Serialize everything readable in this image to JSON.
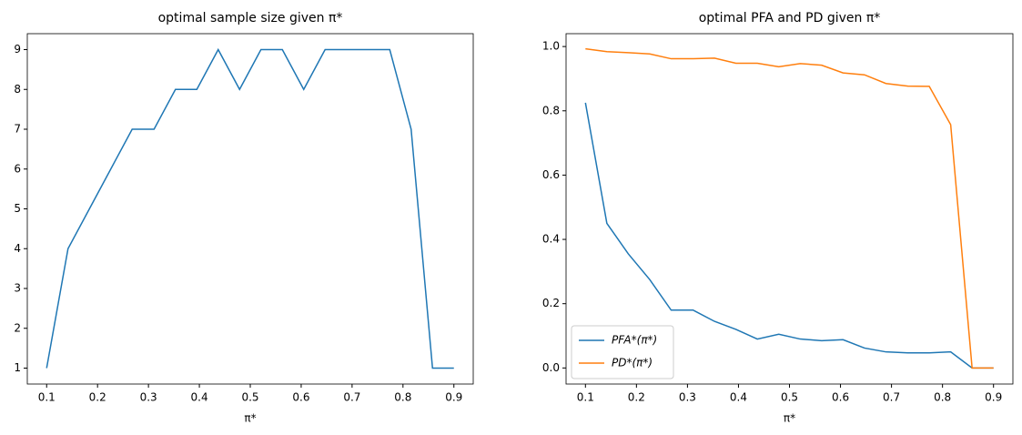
{
  "chart_data": [
    {
      "type": "line",
      "title": "optimal sample size given π*",
      "x_label": "π*",
      "x": [
        0.1,
        0.142,
        0.184,
        0.226,
        0.268,
        0.311,
        0.353,
        0.395,
        0.437,
        0.479,
        0.521,
        0.563,
        0.605,
        0.647,
        0.689,
        0.732,
        0.774,
        0.816,
        0.858,
        0.9
      ],
      "series": [
        {
          "name": null,
          "color": "#1f77b4",
          "values": [
            1,
            4,
            5,
            6,
            7,
            7,
            8,
            8,
            9,
            8,
            9,
            9,
            8,
            9,
            9,
            9,
            9,
            7,
            1,
            1
          ]
        }
      ],
      "xlim": [
        0.062,
        0.938
      ],
      "ylim": [
        0.6,
        9.4
      ],
      "xticks": [
        0.1,
        0.2,
        0.3,
        0.4,
        0.5,
        0.6,
        0.7,
        0.8,
        0.9
      ],
      "yticks": [
        1,
        2,
        3,
        4,
        5,
        6,
        7,
        8,
        9
      ]
    },
    {
      "type": "line",
      "title": "optimal PFA and PD given π*",
      "x_label": "π*",
      "x": [
        0.1,
        0.142,
        0.184,
        0.226,
        0.268,
        0.311,
        0.353,
        0.395,
        0.437,
        0.479,
        0.521,
        0.563,
        0.605,
        0.647,
        0.689,
        0.732,
        0.774,
        0.816,
        0.858,
        0.9
      ],
      "series": [
        {
          "name": "PFA*(π*)",
          "color": "#1f77b4",
          "values": [
            0.825,
            0.45,
            0.355,
            0.275,
            0.18,
            0.18,
            0.145,
            0.12,
            0.09,
            0.105,
            0.09,
            0.085,
            0.088,
            0.062,
            0.05,
            0.047,
            0.047,
            0.05,
            0.0,
            0.0
          ]
        },
        {
          "name": "PD*(π*)",
          "color": "#ff7f0e",
          "values": [
            0.993,
            0.984,
            0.981,
            0.977,
            0.962,
            0.962,
            0.964,
            0.948,
            0.948,
            0.937,
            0.947,
            0.942,
            0.918,
            0.912,
            0.885,
            0.877,
            0.876,
            0.757,
            0.0,
            0.0
          ]
        }
      ],
      "xlim": [
        0.062,
        0.938
      ],
      "ylim": [
        -0.05,
        1.04
      ],
      "xticks": [
        0.1,
        0.2,
        0.3,
        0.4,
        0.5,
        0.6,
        0.7,
        0.8,
        0.9
      ],
      "yticks": [
        {
          "value": 0,
          "label": "0.0"
        },
        0.2,
        0.4,
        0.6,
        0.8,
        {
          "value": 1,
          "label": "1.0"
        }
      ],
      "legend": "lower left"
    }
  ]
}
